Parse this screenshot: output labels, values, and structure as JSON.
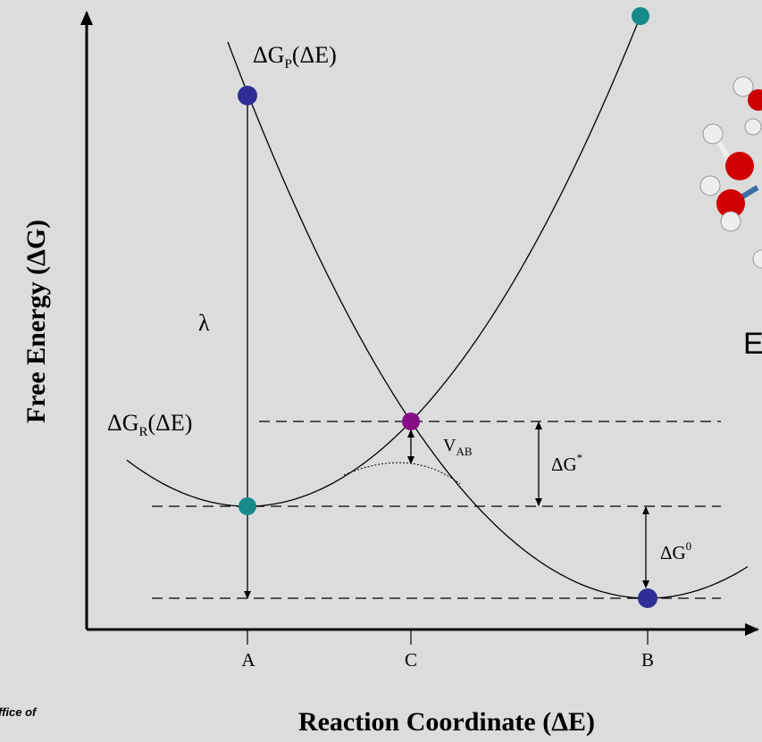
{
  "labels": {
    "product_curve": {
      "base": "ΔG",
      "sub": "P",
      "rest": "(ΔE)"
    },
    "reactant_curve": {
      "base": "ΔG",
      "sub": "R",
      "rest": "(ΔE)"
    },
    "lambda": "λ",
    "coupling": {
      "base": "V",
      "sub": "AB"
    },
    "activation": {
      "base": "ΔG",
      "sup": "*"
    },
    "driving_force": {
      "base": "ΔG",
      "sup": "0"
    }
  },
  "x_points": [
    "A",
    "C",
    "B"
  ],
  "y_axis_title": "Free Energy (ΔG)",
  "x_axis_title": "Reaction Coordinate (ΔE)",
  "cut_text_right": "E",
  "cut_text_bottom": "ffice of"
}
